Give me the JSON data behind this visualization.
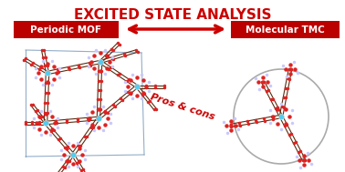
{
  "title": "EXCITED STATE ANALYSIS",
  "title_color": "#CC0000",
  "title_fontsize": 11,
  "title_weight": "bold",
  "label_left": "Periodic MOF",
  "label_right": "Molecular TMC",
  "label_color": "white",
  "label_bg_color": "#BB0000",
  "label_fontsize": 7.5,
  "label_weight": "bold",
  "pros_cons_text": "Pros & cons",
  "pros_cons_color": "#CC0000",
  "pros_cons_fontsize": 8,
  "pros_cons_style": "italic",
  "pros_cons_weight": "bold",
  "background_color": "white",
  "arrow_color": "#CC0000",
  "circle_color": "#AAAAAA",
  "bond_color": "#5B2C10",
  "metal_color": "#55CCEE",
  "oxygen_color": "#DD2222",
  "hydrogen_color": "#C8C8FF",
  "cell_color": "#7799BB",
  "figw": 3.78,
  "figh": 1.89,
  "dpi": 100
}
